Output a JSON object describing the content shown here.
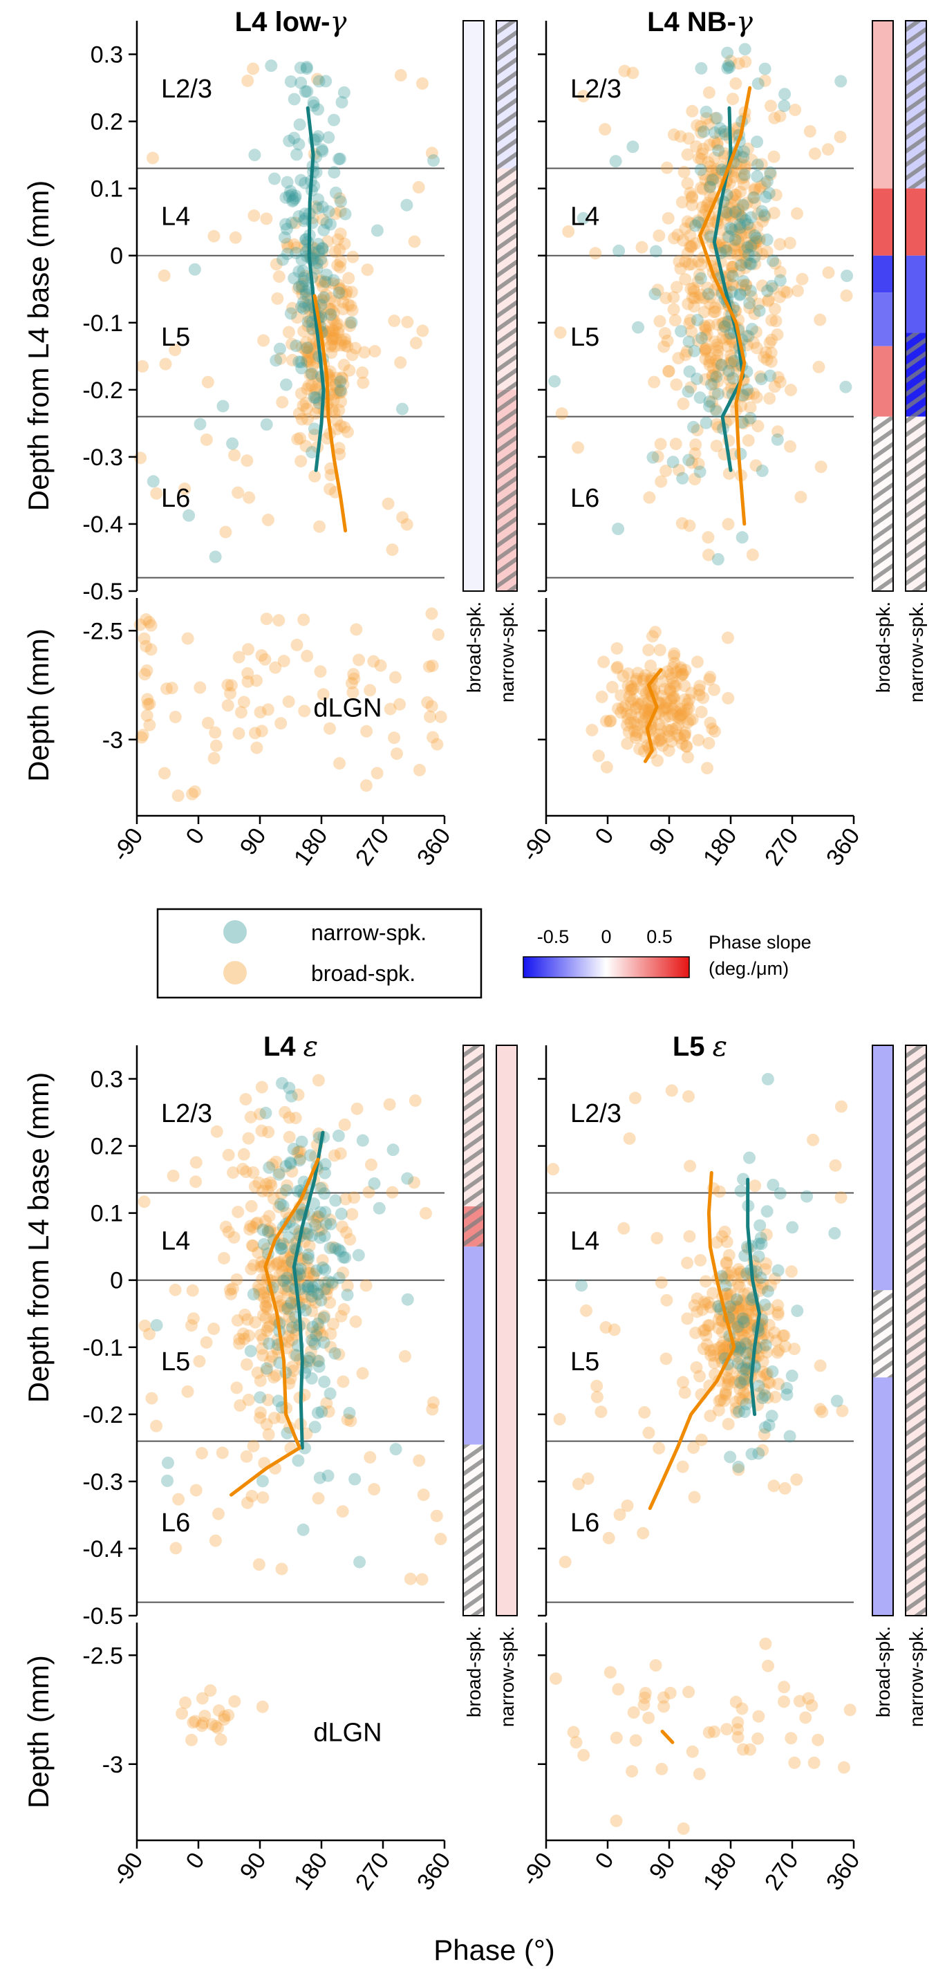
{
  "figure": {
    "x_axis_label": "Phase (°)",
    "y_axis_label_cortex": "Depth from L4 base (mm)",
    "y_axis_label_lgn": "Depth (mm)",
    "x_ticks": [
      "-90",
      "0",
      "90",
      "180",
      "270",
      "360"
    ],
    "y_ticks_cortex": [
      "0.3",
      "0.2",
      "0.1",
      "0",
      "-0.1",
      "-0.2",
      "-0.3",
      "-0.4",
      "-0.5"
    ],
    "y_ticks_lgn": [
      "-2.5",
      "-3"
    ],
    "layer_labels": [
      "L2/3",
      "L4",
      "L5",
      "L6"
    ],
    "lgn_label": "dLGN",
    "bar_labels": [
      "broad-spk.",
      "narrow-spk."
    ]
  },
  "legend": {
    "narrow_label": "narrow-spk.",
    "broad_label": "broad-spk."
  },
  "colorbar": {
    "ticks": [
      "-0.5",
      "0",
      "0.5"
    ],
    "title_line1": "Phase slope",
    "title_line2": "(deg./μm)"
  },
  "colors": {
    "narrow": "#3a9c9c",
    "narrow_line": "#167f7f",
    "broad": "#f7a23a",
    "broad_line": "#f08a00",
    "boundary": "#555555"
  },
  "chart_data": [
    {
      "type": "scatter",
      "title_main": "L4 low-",
      "title_greek": "γ",
      "x_range": [
        -90,
        360
      ],
      "y_range_cortex": [
        -0.5,
        0.35
      ],
      "y_range_lgn": [
        -3.35,
        -2.35
      ],
      "layer_boundaries_mm": [
        0.13,
        0,
        -0.24,
        -0.48
      ],
      "narrow_mean_curve": {
        "depth": [
          0.22,
          0.15,
          0.08,
          0.0,
          -0.08,
          -0.15,
          -0.2,
          -0.25,
          -0.32
        ],
        "phase": [
          160,
          168,
          163,
          162,
          170,
          178,
          183,
          180,
          172
        ]
      },
      "broad_mean_curve": {
        "depth": [
          -0.06,
          -0.12,
          -0.18,
          -0.24,
          -0.3,
          -0.36,
          -0.41
        ],
        "phase": [
          170,
          180,
          188,
          190,
          198,
          208,
          215
        ]
      },
      "lgn_mean_curve": null,
      "narrow_cluster": {
        "center_phase": 165,
        "center_depth": 0.02,
        "sd_phase": 22,
        "sd_depth": 0.13,
        "count": 140,
        "outliers": 20
      },
      "broad_cluster": {
        "center_phase": 185,
        "center_depth": -0.12,
        "sd_phase": 28,
        "sd_depth": 0.09,
        "count": 220,
        "outliers": 45
      },
      "lgn_points": {
        "center_phase": 140,
        "center_depth": -2.8,
        "sd_phase": 140,
        "sd_depth": 0.22,
        "count": 90
      },
      "broad_bar": [
        {
          "from": 0.35,
          "to": -0.5,
          "slope": -0.05,
          "hatched": false
        }
      ],
      "narrow_bar": [
        {
          "from": 0.35,
          "to": 0.13,
          "slope": -0.1,
          "hatched": true
        },
        {
          "from": 0.13,
          "to": -0.2,
          "slope": 0.1,
          "hatched": true
        },
        {
          "from": -0.2,
          "to": -0.5,
          "slope": 0.22,
          "hatched": true
        }
      ]
    },
    {
      "type": "scatter",
      "title_main": "L4 NB-",
      "title_greek": "γ",
      "x_range": [
        -90,
        360
      ],
      "y_range_cortex": [
        -0.5,
        0.35
      ],
      "y_range_lgn": [
        -3.35,
        -2.35
      ],
      "layer_boundaries_mm": [
        0.13,
        0,
        -0.24,
        -0.48
      ],
      "narrow_mean_curve": {
        "depth": [
          0.22,
          0.15,
          0.08,
          0.02,
          -0.05,
          -0.12,
          -0.18,
          -0.24,
          -0.32
        ],
        "phase": [
          178,
          180,
          166,
          156,
          172,
          190,
          198,
          168,
          180
        ]
      },
      "broad_mean_curve": {
        "depth": [
          0.25,
          0.18,
          0.1,
          0.03,
          -0.03,
          -0.1,
          -0.16,
          -0.22,
          -0.3,
          -0.4
        ],
        "phase": [
          208,
          195,
          165,
          135,
          155,
          188,
          200,
          188,
          192,
          200
        ]
      },
      "lgn_mean_curve": {
        "depth": [
          -2.68,
          -2.75,
          -2.85,
          -2.95,
          -3.05,
          -3.1
        ],
        "phase": [
          78,
          60,
          72,
          58,
          65,
          55
        ]
      },
      "narrow_cluster": {
        "center_phase": 185,
        "center_depth": 0.0,
        "sd_phase": 30,
        "sd_depth": 0.16,
        "count": 130,
        "outliers": 30
      },
      "broad_cluster": {
        "center_phase": 170,
        "center_depth": -0.02,
        "sd_phase": 38,
        "sd_depth": 0.14,
        "count": 420,
        "outliers": 50
      },
      "lgn_points": {
        "center_phase": 70,
        "center_depth": -2.85,
        "sd_phase": 38,
        "sd_depth": 0.12,
        "count": 200
      },
      "broad_bar": [
        {
          "from": 0.35,
          "to": 0.1,
          "slope": 0.3,
          "hatched": false
        },
        {
          "from": 0.1,
          "to": 0.0,
          "slope": 0.7,
          "hatched": false
        },
        {
          "from": 0.0,
          "to": -0.055,
          "slope": -0.8,
          "hatched": false
        },
        {
          "from": -0.055,
          "to": -0.135,
          "slope": -0.6,
          "hatched": false
        },
        {
          "from": -0.135,
          "to": -0.24,
          "slope": 0.55,
          "hatched": false
        },
        {
          "from": -0.24,
          "to": -0.5,
          "slope": 0.02,
          "hatched": true
        }
      ],
      "narrow_bar": [
        {
          "from": 0.35,
          "to": 0.1,
          "slope": -0.2,
          "hatched": true
        },
        {
          "from": 0.1,
          "to": 0.0,
          "slope": 0.7,
          "hatched": false
        },
        {
          "from": 0.0,
          "to": -0.115,
          "slope": -0.7,
          "hatched": false
        },
        {
          "from": -0.115,
          "to": -0.24,
          "slope": -0.95,
          "hatched": true
        },
        {
          "from": -0.24,
          "to": -0.5,
          "slope": 0.05,
          "hatched": true
        }
      ]
    },
    {
      "type": "scatter",
      "title_main": "L4 ",
      "title_greek": "ε",
      "x_range": [
        -90,
        360
      ],
      "y_range_cortex": [
        -0.5,
        0.35
      ],
      "y_range_lgn": [
        -3.35,
        -2.35
      ],
      "layer_boundaries_mm": [
        0.13,
        0,
        -0.24,
        -0.48
      ],
      "narrow_mean_curve": {
        "depth": [
          0.22,
          0.15,
          0.08,
          0.02,
          -0.05,
          -0.12,
          -0.18,
          -0.25
        ],
        "phase": [
          182,
          170,
          152,
          140,
          148,
          152,
          150,
          152
        ]
      },
      "broad_mean_curve": {
        "depth": [
          0.18,
          0.12,
          0.06,
          0.02,
          -0.05,
          -0.12,
          -0.2,
          -0.25,
          -0.28,
          -0.32
        ],
        "phase": [
          175,
          150,
          112,
          98,
          115,
          125,
          128,
          148,
          100,
          48
        ]
      },
      "lgn_mean_curve": null,
      "narrow_cluster": {
        "center_phase": 160,
        "center_depth": 0.0,
        "sd_phase": 30,
        "sd_depth": 0.13,
        "count": 140,
        "outliers": 20
      },
      "broad_cluster": {
        "center_phase": 130,
        "center_depth": 0.0,
        "sd_phase": 38,
        "sd_depth": 0.1,
        "count": 280,
        "outliers": 70
      },
      "lgn_points": {
        "center_phase": 20,
        "center_depth": -2.8,
        "sd_phase": 30,
        "sd_depth": 0.07,
        "count": 20
      },
      "broad_bar": [
        {
          "from": 0.35,
          "to": 0.11,
          "slope": 0.1,
          "hatched": true
        },
        {
          "from": 0.11,
          "to": 0.05,
          "slope": 0.5,
          "hatched": true
        },
        {
          "from": 0.05,
          "to": -0.245,
          "slope": -0.35,
          "hatched": false
        },
        {
          "from": -0.245,
          "to": -0.5,
          "slope": 0.02,
          "hatched": true
        }
      ],
      "narrow_bar": [
        {
          "from": 0.35,
          "to": -0.5,
          "slope": 0.15,
          "hatched": false
        }
      ]
    },
    {
      "type": "scatter",
      "title_main": "L5 ",
      "title_greek": "ε",
      "x_range": [
        -90,
        360
      ],
      "y_range_cortex": [
        -0.5,
        0.35
      ],
      "y_range_lgn": [
        -3.35,
        -2.35
      ],
      "layer_boundaries_mm": [
        0.13,
        0,
        -0.24,
        -0.48
      ],
      "narrow_mean_curve": {
        "depth": [
          0.15,
          0.08,
          0.0,
          -0.05,
          -0.1,
          -0.15,
          -0.2
        ],
        "phase": [
          205,
          205,
          212,
          222,
          215,
          210,
          215
        ]
      },
      "broad_mean_curve": {
        "depth": [
          0.16,
          0.1,
          0.05,
          0.0,
          -0.05,
          -0.1,
          -0.15,
          -0.2,
          -0.25,
          -0.3,
          -0.34
        ],
        "phase": [
          152,
          148,
          150,
          160,
          172,
          185,
          160,
          122,
          102,
          80,
          62
        ]
      },
      "lgn_mean_curve": {
        "depth": [
          -2.85,
          -2.9
        ],
        "phase": [
          80,
          95
        ]
      },
      "narrow_cluster": {
        "center_phase": 215,
        "center_depth": -0.08,
        "sd_phase": 28,
        "sd_depth": 0.11,
        "count": 70,
        "outliers": 10
      },
      "broad_cluster": {
        "center_phase": 195,
        "center_depth": -0.08,
        "sd_phase": 32,
        "sd_depth": 0.06,
        "count": 260,
        "outliers": 50
      },
      "lgn_points": {
        "center_phase": 150,
        "center_depth": -2.85,
        "sd_phase": 110,
        "sd_depth": 0.2,
        "count": 50
      },
      "broad_bar": [
        {
          "from": 0.35,
          "to": -0.015,
          "slope": -0.35,
          "hatched": false
        },
        {
          "from": -0.015,
          "to": -0.145,
          "slope": 0.02,
          "hatched": true
        },
        {
          "from": -0.145,
          "to": -0.5,
          "slope": -0.35,
          "hatched": false
        }
      ],
      "narrow_bar": [
        {
          "from": 0.35,
          "to": -0.5,
          "slope": 0.1,
          "hatched": true
        }
      ]
    }
  ]
}
